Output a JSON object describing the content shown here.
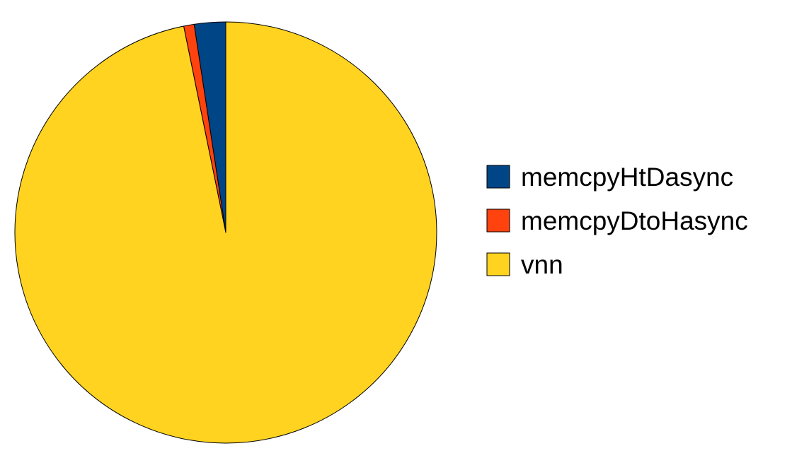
{
  "chart_data": {
    "type": "pie",
    "title": "",
    "slices": [
      {
        "label": "memcpyHtDasync",
        "value": 2.4,
        "color": "#004586"
      },
      {
        "label": "memcpyDtoHasync",
        "value": 0.8,
        "color": "#FF420E"
      },
      {
        "label": "vnn",
        "value": 96.8,
        "color": "#FFD320"
      }
    ],
    "start_angle_deg": 0,
    "direction": "counterclockwise",
    "legend_position": "right",
    "grid": false
  }
}
